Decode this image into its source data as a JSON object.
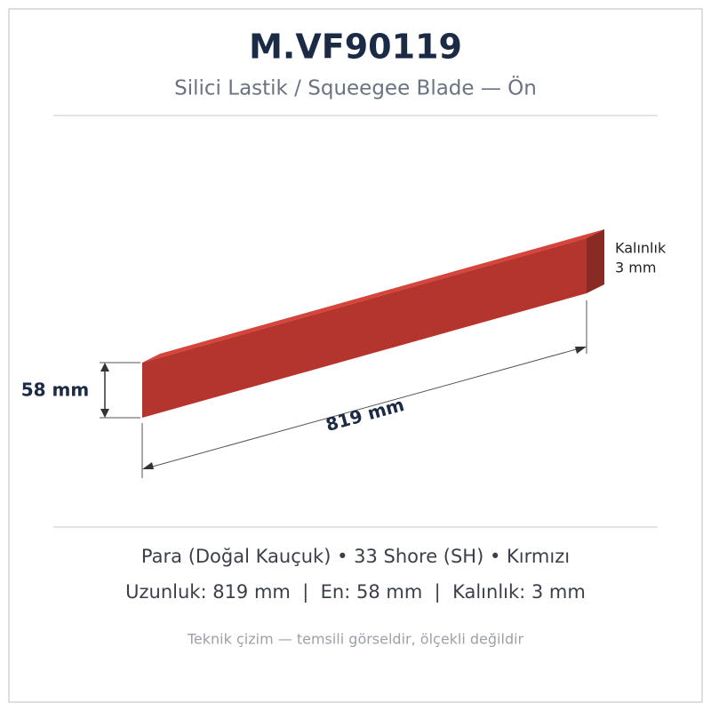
{
  "header": {
    "title": "M.VF90119",
    "subtitle": "Silici Lastik / Squeegee Blade — Ön"
  },
  "drawing": {
    "thickness_label": [
      "Kalınlık",
      "3 mm"
    ],
    "height_label": "58 mm",
    "length_label": "819 mm"
  },
  "specs": {
    "material_line": "Para (Doğal Kauçuk) • 33 Shore (SH) • Kırmızı",
    "dimension_line": "Uzunluk: 819 mm  |  En: 58 mm  |  Kalınlık: 3 mm"
  },
  "footer": {
    "note": "Teknik çizim — temsili görseldir, ölçekli değildir"
  }
}
